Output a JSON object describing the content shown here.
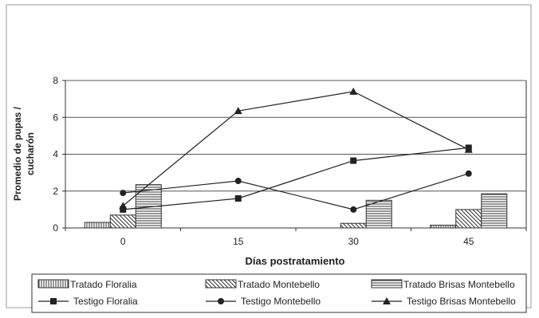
{
  "chart_data": {
    "type": "bar",
    "xlabel": "Días postratamiento",
    "ylabel_lines": [
      "Promedio de pupas /",
      "cucharón"
    ],
    "categories": [
      "0",
      "15",
      "30",
      "45"
    ],
    "ylim": [
      0,
      8
    ],
    "yticks": [
      "0",
      "2",
      "4",
      "6",
      "8"
    ],
    "grid": true,
    "legend_position": "bottom",
    "bar_series": [
      {
        "name": "Tratado Floralia",
        "values": [
          0.3,
          null,
          0.0,
          0.15
        ],
        "pattern": "vertical-hatch"
      },
      {
        "name": "Tratado Montebello",
        "values": [
          0.7,
          null,
          0.25,
          1.0
        ],
        "pattern": "diagonal-hatch"
      },
      {
        "name": "Tratado Brisas Montebello",
        "values": [
          2.35,
          null,
          1.5,
          1.85
        ],
        "pattern": "horizontal-hatch"
      }
    ],
    "line_series": [
      {
        "name": "Testigo Floralia",
        "marker": "square",
        "values": [
          1.0,
          1.6,
          3.65,
          4.35
        ]
      },
      {
        "name": "Testigo Montebello",
        "marker": "circle",
        "values": [
          1.9,
          2.55,
          1.0,
          2.95
        ]
      },
      {
        "name": "Testigo Brisas Montebello",
        "marker": "triangle",
        "values": [
          1.2,
          6.35,
          7.4,
          4.25
        ]
      }
    ]
  }
}
